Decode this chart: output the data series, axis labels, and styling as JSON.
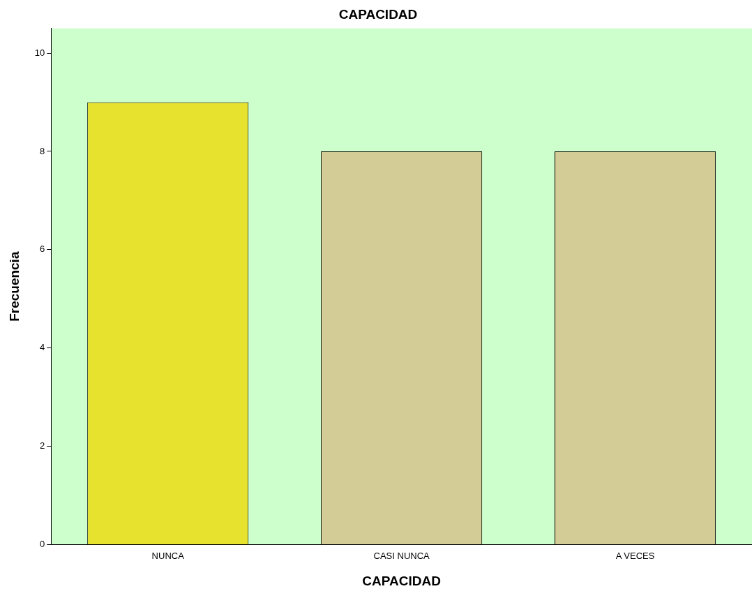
{
  "chart_data": {
    "type": "bar",
    "title": "CAPACIDAD",
    "xlabel": "CAPACIDAD",
    "ylabel": "Frecuencia",
    "categories": [
      "NUNCA",
      "CASI NUNCA",
      "A VECES"
    ],
    "values": [
      9,
      8,
      8
    ],
    "colors": [
      "#e6e22e",
      "#d4cc96",
      "#d4cc96"
    ],
    "ylim": [
      0,
      10.5
    ],
    "yticks": [
      0,
      2,
      4,
      6,
      8,
      10
    ],
    "grid": false,
    "legend": false
  }
}
